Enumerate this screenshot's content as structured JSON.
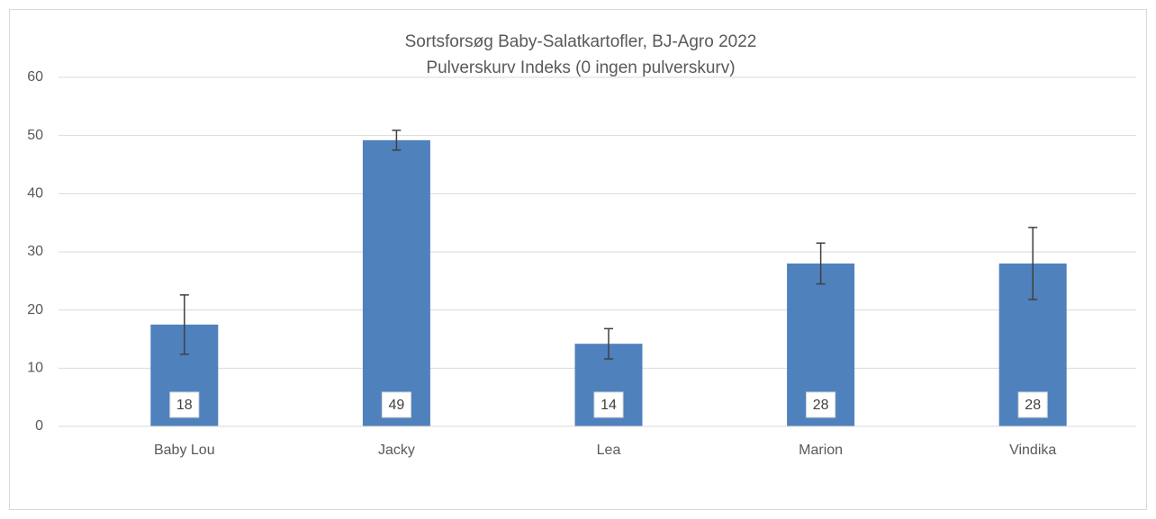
{
  "chart_data": {
    "type": "bar",
    "title": "Sortsforsøg Baby-Salatkartofler, BJ-Agro 2022",
    "subtitle": "Pulverskurv Indeks (0 ingen pulverskurv)",
    "categories": [
      "Baby Lou",
      "Jacky",
      "Lea",
      "Marion",
      "Vindika"
    ],
    "values": [
      17.5,
      49.2,
      14.2,
      28.0,
      28.0
    ],
    "value_labels": [
      "18",
      "49",
      "14",
      "28",
      "28"
    ],
    "errors": [
      5.1,
      1.7,
      2.6,
      3.5,
      6.2
    ],
    "color": "#4f81bd",
    "ylim": [
      0,
      60
    ],
    "yticks": [
      0,
      10,
      20,
      30,
      40,
      50,
      60
    ],
    "grid": true
  }
}
